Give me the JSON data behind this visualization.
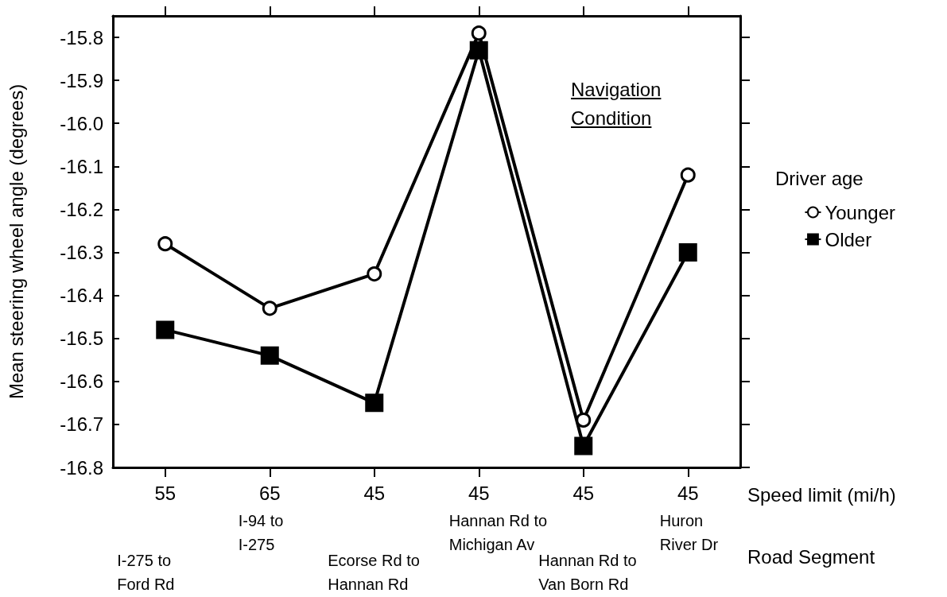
{
  "chart_data": {
    "type": "line",
    "ylabel": "Mean steering wheel angle (degrees)",
    "xlabel": "Speed limit (mi/h)",
    "legend_title": "Driver age",
    "legend": "right",
    "categories": [
      "55",
      "65",
      "45",
      "45",
      "45",
      "45"
    ],
    "series": [
      {
        "name": "Younger",
        "color": "#000000",
        "marker": "circle",
        "values": [
          -16.28,
          -16.43,
          -16.35,
          -15.79,
          -16.69,
          -16.12
        ]
      },
      {
        "name": "Older",
        "color": "#000000",
        "marker": "square",
        "values": [
          -16.48,
          -16.54,
          -16.65,
          -15.83,
          -16.75,
          -16.3
        ]
      }
    ],
    "ylim": [
      -16.8,
      -15.75
    ],
    "yticks": [
      -16.8,
      -16.7,
      -16.6,
      -16.5,
      -16.4,
      -16.3,
      -16.2,
      -16.1,
      {
        "value": -16.0,
        "label": "-16.0"
      },
      -15.9,
      -15.8
    ],
    "annotations": [
      "Navigation Condition",
      "Road Segment",
      "I-275 to\nFord Rd",
      "I-94 to\nI-275",
      "Ecorse Rd to\nHannan Rd",
      "Hannan Rd to\nMichigan Av",
      "Hannan Rd to\nVan Born Rd",
      "Huron\nRiver Dr"
    ]
  }
}
